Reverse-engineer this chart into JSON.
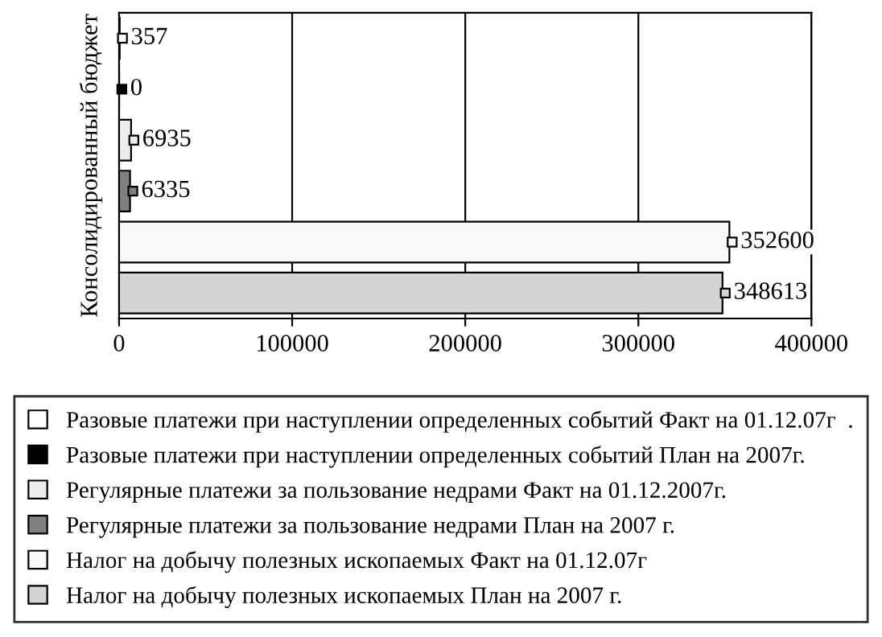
{
  "chart_data": {
    "type": "bar",
    "orientation": "horizontal",
    "ylabel": "Консолидированный бюджет",
    "categories": [
      null,
      null,
      null,
      null,
      null,
      null
    ],
    "series": [
      {
        "name": "Разовые платежи при наступлении определенных событий Факт на 01.12.07г  .",
        "color": "#ffffff",
        "values": [
          357,
          null,
          null,
          null,
          null,
          null
        ]
      },
      {
        "name": "Разовые платежи при наступлении определенных событий План на 2007г.",
        "color": "#000000",
        "values": [
          null,
          0,
          null,
          null,
          null,
          null
        ]
      },
      {
        "name": "Регулярные платежи за пользование недрами Факт на 01.12.2007г.",
        "color": "#eeeeee",
        "values": [
          null,
          null,
          6935,
          null,
          null,
          null
        ]
      },
      {
        "name": "Регулярные платежи за пользование недрами План на 2007 г.",
        "color": "#808080",
        "values": [
          null,
          null,
          null,
          6335,
          null,
          null
        ]
      },
      {
        "name": "Налог на добычу полезных ископаемых Факт на 01.12.07г",
        "color": "#f8f8f8",
        "values": [
          null,
          null,
          null,
          null,
          352600,
          null
        ]
      },
      {
        "name": "Налог на добычу полезных ископаемых План на 2007 г.",
        "color": "#d4d4d4",
        "values": [
          null,
          null,
          null,
          null,
          null,
          348613
        ]
      }
    ],
    "xlim": [
      0,
      400000
    ],
    "xticks": [
      0,
      100000,
      200000,
      300000,
      400000
    ],
    "grid": "x",
    "legend": "bottom",
    "data_labels": true
  }
}
